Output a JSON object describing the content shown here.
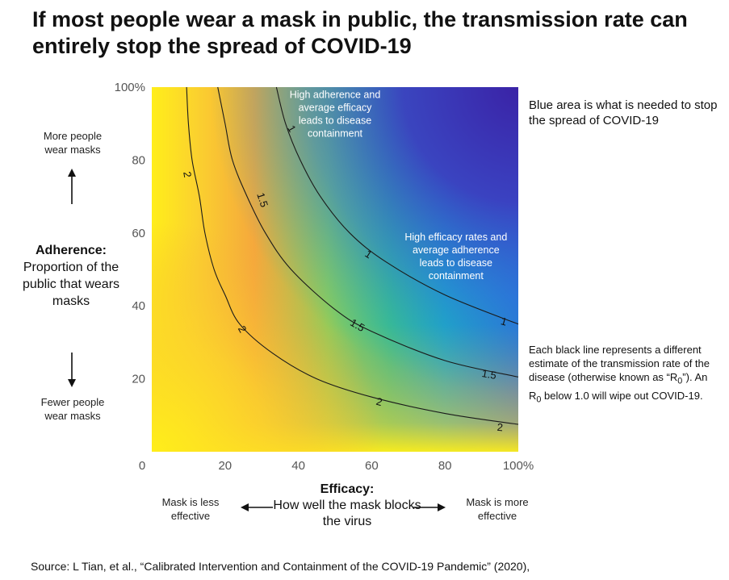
{
  "title": "If most people wear a mask in public, the transmission rate can entirely stop the spread of COVID-19",
  "y_axis": {
    "title_bold": "Adherence:",
    "title_rest": "Proportion of the public that wears masks",
    "top_hint": "More people wear masks",
    "bottom_hint": "Fewer people wear masks"
  },
  "x_axis": {
    "title_bold": "Efficacy:",
    "title_rest": "How well the mask blocks the virus",
    "left_hint": "Mask is less effective",
    "right_hint": "Mask is more effective"
  },
  "notes": {
    "blue_area": "Blue area is what is needed to stop the spread of COVID-19",
    "lines_pre": "Each black line represents a different estimate of the transmission rate of the disease (otherwise known as “R",
    "lines_sub": "0",
    "lines_mid": "”). An R",
    "lines_sub2": "0",
    "lines_post": " below 1.0 will wipe out COVID-19."
  },
  "source": "Source: L Tian, et al., “Calibrated Intervention and Containment of the COVID-19 Pandemic” (2020),",
  "colors": {
    "yellow": "#ffe81e",
    "orange": "#f6a93a",
    "green": "#52c96e",
    "teal": "#1fb3b3",
    "blue": "#2f7fd8",
    "indigo": "#3b2fa8"
  },
  "chart_data": {
    "type": "heatmap",
    "xlabel": "Efficacy: How well the mask blocks the virus",
    "ylabel": "Adherence: Proportion of the public that wears masks",
    "xlim": [
      0,
      100
    ],
    "ylim": [
      0,
      100
    ],
    "x_ticks": [
      "0",
      "20",
      "40",
      "60",
      "80",
      "100%"
    ],
    "y_ticks": [
      "20",
      "40",
      "60",
      "80",
      "100%"
    ],
    "x_tick_values": [
      0,
      20,
      40,
      60,
      80,
      100
    ],
    "y_tick_values": [
      20,
      40,
      60,
      80,
      100
    ],
    "contours": [
      {
        "level": "2",
        "points": [
          [
            9.5,
            100
          ],
          [
            10,
            90
          ],
          [
            11,
            80
          ],
          [
            13,
            70
          ],
          [
            14.5,
            60
          ],
          [
            17,
            50
          ],
          [
            20,
            43
          ],
          [
            24,
            35
          ],
          [
            33,
            27
          ],
          [
            45,
            20
          ],
          [
            60,
            15
          ],
          [
            80,
            10.5
          ],
          [
            100,
            7.5
          ]
        ]
      },
      {
        "level": "1.5",
        "points": [
          [
            18,
            100
          ],
          [
            20,
            90
          ],
          [
            22,
            80
          ],
          [
            26,
            70
          ],
          [
            31,
            60
          ],
          [
            38,
            50
          ],
          [
            50,
            39
          ],
          [
            60,
            33
          ],
          [
            80,
            25
          ],
          [
            100,
            20.5
          ]
        ]
      },
      {
        "level": "1",
        "points": [
          [
            34,
            100
          ],
          [
            36.5,
            90
          ],
          [
            40.5,
            80
          ],
          [
            46,
            70
          ],
          [
            54,
            60
          ],
          [
            64,
            52
          ],
          [
            80,
            43
          ],
          [
            100,
            35
          ]
        ]
      }
    ],
    "contour_labels": [
      {
        "text": "2",
        "x": 9.5,
        "y": 76,
        "rot": 80
      },
      {
        "text": "2",
        "x": 24.5,
        "y": 33.5,
        "rot": 60
      },
      {
        "text": "2",
        "x": 62,
        "y": 13.5,
        "rot": 15
      },
      {
        "text": "2",
        "x": 95,
        "y": 6.5,
        "rot": 5
      },
      {
        "text": "1.5",
        "x": 30,
        "y": 69,
        "rot": 72
      },
      {
        "text": "1.5",
        "x": 56,
        "y": 34.5,
        "rot": 30
      },
      {
        "text": "1.5",
        "x": 92,
        "y": 21,
        "rot": 10
      },
      {
        "text": "1",
        "x": 38,
        "y": 88.5,
        "rot": 60
      },
      {
        "text": "1",
        "x": 59,
        "y": 54,
        "rot": 33
      },
      {
        "text": "1",
        "x": 96,
        "y": 35.5,
        "rot": 15
      }
    ],
    "annotations": [
      {
        "lines": [
          "High adherence and",
          "average efficacy",
          "leads to disease",
          "containment"
        ],
        "x": 50,
        "y": 97
      },
      {
        "lines": [
          "High efficacy rates and",
          "average adherence",
          "leads to disease",
          "containment"
        ],
        "x": 83,
        "y": 58
      }
    ]
  }
}
